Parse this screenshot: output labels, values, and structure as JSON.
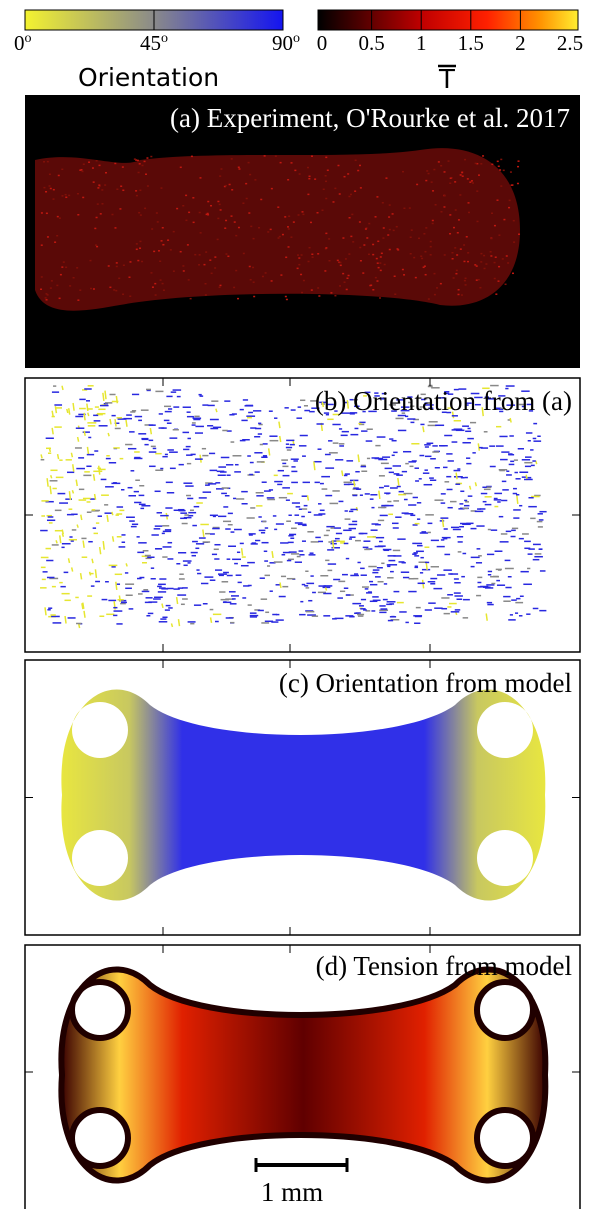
{
  "colorbars": [
    {
      "label": "Orientation",
      "ticks": [
        {
          "base": "0",
          "sup": "o"
        },
        {
          "base": "45",
          "sup": "o"
        },
        {
          "base": "90",
          "sup": "o"
        }
      ]
    },
    {
      "label": "T",
      "ticks": [
        "0",
        "0.5",
        "1",
        "1.5",
        "2",
        "2.5"
      ]
    }
  ],
  "panels": [
    {
      "title": "(a) Experiment, O'Rourke et al. 2017"
    },
    {
      "title": "(b) Orientation from (a)"
    },
    {
      "title": "(c) Orientation from model"
    },
    {
      "title": "(d) Tension from model"
    }
  ],
  "scale_bar": {
    "label": "1 mm"
  }
}
